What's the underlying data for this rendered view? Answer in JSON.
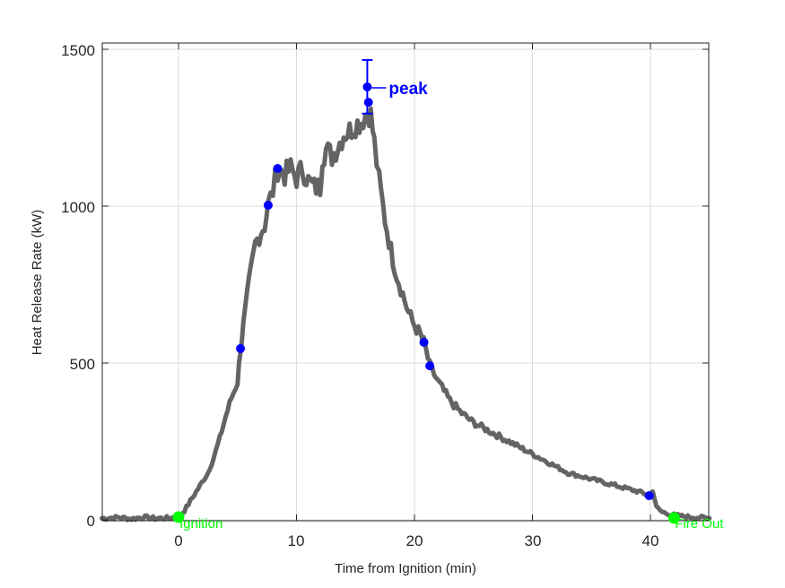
{
  "chart_data": {
    "type": "line",
    "title": "",
    "xlabel": "Time from Ignition (min)",
    "ylabel": "Heat Release Rate (kW)",
    "xlim": [
      -6.5,
      45
    ],
    "ylim": [
      0,
      1520
    ],
    "xticks": [
      0,
      10,
      20,
      30,
      40
    ],
    "yticks": [
      0,
      500,
      1000,
      1500
    ],
    "grid": true,
    "legend": null,
    "series": [
      {
        "name": "Heat Release Rate",
        "color": "#646464",
        "style": "thick noisy line",
        "x": [
          -6.5,
          -5,
          -4,
          -3,
          -2,
          -1,
          0,
          0.5,
          1,
          1.5,
          2,
          2.5,
          3,
          3.5,
          4,
          4.5,
          5,
          5.25,
          5.5,
          6,
          6.5,
          7,
          7.3,
          7.6,
          8,
          8.4,
          9,
          9.5,
          10,
          10.5,
          11,
          11.5,
          12,
          12.2,
          12.5,
          13,
          13.5,
          14,
          14.5,
          15,
          15.5,
          16,
          16.3,
          16.6,
          17,
          17.5,
          18,
          18.5,
          19,
          19.5,
          20,
          20.5,
          20.8,
          21.3,
          22,
          23,
          24,
          25,
          26,
          27,
          28,
          29,
          30,
          31,
          32,
          33,
          34,
          35,
          36,
          37,
          38,
          39,
          39.9,
          40.2,
          40.5,
          41,
          42,
          43,
          44,
          45
        ],
        "y": [
          5,
          8,
          3,
          9,
          5,
          6,
          9,
          30,
          60,
          90,
          120,
          150,
          200,
          260,
          330,
          390,
          440,
          546,
          620,
          760,
          880,
          920,
          940,
          1003,
          1050,
          1120,
          1100,
          1120,
          1090,
          1120,
          1080,
          1060,
          1060,
          1160,
          1180,
          1160,
          1190,
          1230,
          1240,
          1260,
          1270,
          1300,
          1290,
          1200,
          1080,
          960,
          860,
          780,
          720,
          660,
          620,
          590,
          566,
          491,
          440,
          380,
          340,
          310,
          290,
          270,
          250,
          230,
          210,
          190,
          170,
          150,
          140,
          130,
          120,
          110,
          100,
          90,
          77,
          95,
          40,
          25,
          15,
          10,
          8,
          5
        ]
      }
    ],
    "markers": {
      "blue_points": [
        {
          "x": 5.25,
          "y": 546
        },
        {
          "x": 7.6,
          "y": 1003
        },
        {
          "x": 8.4,
          "y": 1120
        },
        {
          "x": 16.0,
          "y": 1380
        },
        {
          "x": 16.1,
          "y": 1331
        },
        {
          "x": 20.8,
          "y": 566
        },
        {
          "x": 21.3,
          "y": 491
        },
        {
          "x": 39.9,
          "y": 77
        }
      ],
      "green_points": [
        {
          "x": 0,
          "y": 9,
          "label": "Ignition"
        },
        {
          "x": 42.0,
          "y": 6,
          "label": "Fire Out"
        }
      ],
      "error_bar": {
        "x": 16.0,
        "low": 1295,
        "high": 1466
      }
    },
    "annotations": [
      {
        "text": "peak",
        "x": 16.0,
        "y": 1380,
        "color": "#0000ff",
        "arrow": true
      }
    ],
    "colors": {
      "line": "#646464",
      "blue_marker": "#0000ff",
      "green_marker": "#00ff00",
      "grid": "#dcdcdc",
      "axis": "#262626"
    }
  },
  "labels": {
    "xlabel": "Time from Ignition (min)",
    "ylabel": "Heat Release Rate (kW)",
    "peak": "peak",
    "ignition": "Ignition",
    "fire_out": "Fire Out",
    "xtick_0": "0",
    "xtick_10": "10",
    "xtick_20": "20",
    "xtick_30": "30",
    "xtick_40": "40",
    "ytick_0": "0",
    "ytick_500": "500",
    "ytick_1000": "1000",
    "ytick_1500": "1500"
  }
}
